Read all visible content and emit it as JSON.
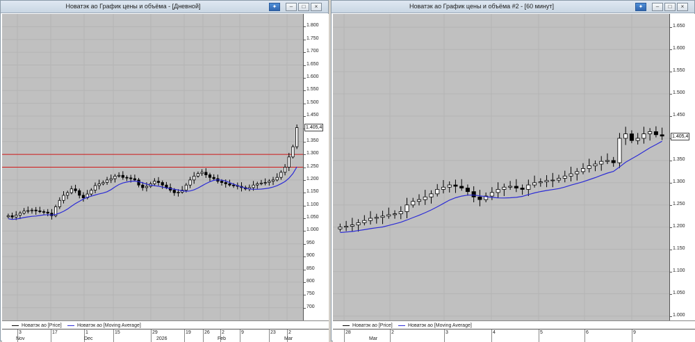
{
  "windows": [
    {
      "title": "Новатэк ао График цены и объёма - [Дневной]",
      "buttons": [
        "pin",
        "minimize",
        "maximize",
        "close"
      ],
      "last_price_label": "1.405,4",
      "legend": [
        {
          "name": "Новатэк ао [Price]",
          "color": "#000000"
        },
        {
          "name": "Новатэк ао [Moving Average]",
          "color": "#2b2bd6"
        }
      ],
      "x_day_labels": [
        "3",
        "17",
        "1",
        "15",
        "29",
        "19",
        "26",
        "2",
        "9",
        "23",
        "2"
      ],
      "x_month_labels": [
        "Nov",
        "Dec",
        "2026",
        "Feb",
        "Mar"
      ],
      "chart_data": {
        "type": "candlestick",
        "ylim": [
          650,
          1850
        ],
        "y_ticks": [
          "700",
          "750",
          "800",
          "850",
          "900",
          "950",
          "1.000",
          "1.050",
          "1.100",
          "1.150",
          "1.200",
          "1.250",
          "1.300",
          "1.350",
          "1.400",
          "1.450",
          "1.500",
          "1.550",
          "1.600",
          "1.650",
          "1.700",
          "1.750",
          "1.800"
        ],
        "horizontal_lines": [
          1300,
          1250
        ],
        "last_price": 1405.4,
        "ohlc_close": [
          1060,
          1055,
          1062,
          1070,
          1078,
          1080,
          1082,
          1079,
          1076,
          1074,
          1070,
          1060,
          1095,
          1120,
          1140,
          1150,
          1165,
          1158,
          1140,
          1130,
          1145,
          1160,
          1178,
          1185,
          1190,
          1200,
          1205,
          1215,
          1218,
          1210,
          1208,
          1205,
          1200,
          1180,
          1170,
          1175,
          1185,
          1195,
          1190,
          1180,
          1170,
          1160,
          1150,
          1152,
          1160,
          1180,
          1200,
          1215,
          1225,
          1230,
          1220,
          1210,
          1205,
          1195,
          1190,
          1185,
          1180,
          1178,
          1175,
          1170,
          1165,
          1170,
          1180,
          1185,
          1188,
          1190,
          1195,
          1200,
          1210,
          1230,
          1250,
          1290,
          1330,
          1405
        ]
      }
    },
    {
      "title": "Новатэк ао График цены и объёма #2 - [60 минут]",
      "buttons": [
        "pin",
        "minimize",
        "maximize",
        "close"
      ],
      "last_price_label": "1.405,4",
      "legend": [
        {
          "name": "Новатэк ао [Price]",
          "color": "#000000"
        },
        {
          "name": "Новатэк ао [Moving Average]",
          "color": "#2b2bd6"
        }
      ],
      "x_day_labels": [
        "28",
        "2",
        "3",
        "4",
        "5",
        "6",
        "9"
      ],
      "x_month_labels": [
        "Mar"
      ],
      "chart_data": {
        "type": "candlestick",
        "ylim": [
          990,
          1680
        ],
        "y_ticks": [
          "1.000",
          "1.050",
          "1.100",
          "1.150",
          "1.200",
          "1.250",
          "1.300",
          "1.350",
          "1.400",
          "1.450",
          "1.500",
          "1.550",
          "1.600",
          "1.650"
        ],
        "last_price": 1405.4,
        "ohlc_close": [
          1200,
          1202,
          1205,
          1210,
          1215,
          1220,
          1222,
          1225,
          1228,
          1230,
          1235,
          1250,
          1258,
          1262,
          1268,
          1275,
          1285,
          1290,
          1295,
          1292,
          1288,
          1280,
          1268,
          1262,
          1270,
          1278,
          1285,
          1290,
          1292,
          1288,
          1285,
          1295,
          1300,
          1302,
          1305,
          1306,
          1310,
          1315,
          1320,
          1325,
          1332,
          1338,
          1342,
          1348,
          1350,
          1345,
          1400,
          1410,
          1395,
          1400,
          1410,
          1415,
          1408,
          1405
        ]
      }
    }
  ]
}
